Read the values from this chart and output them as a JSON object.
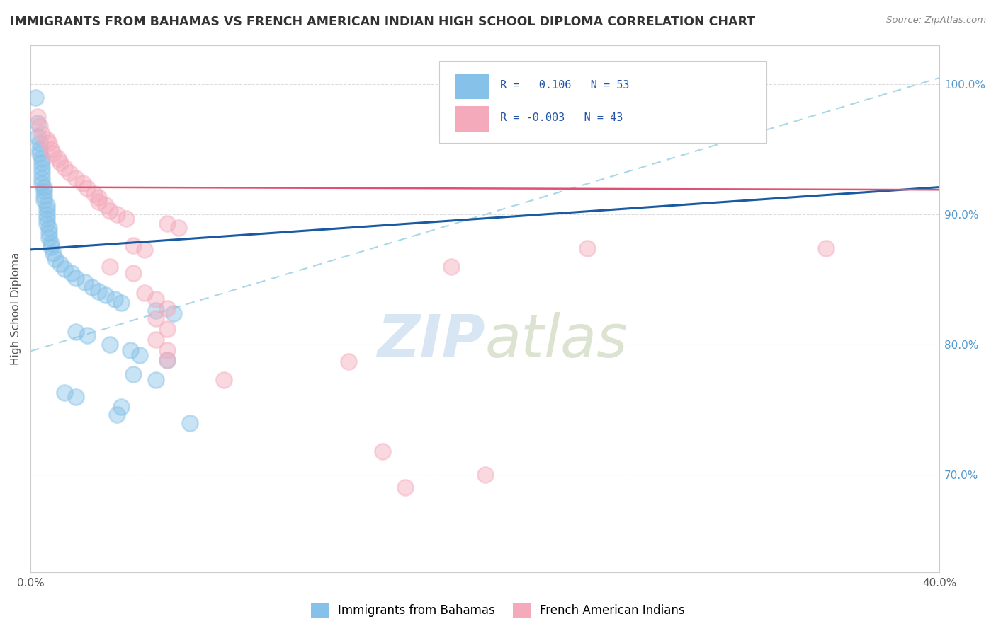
{
  "title": "IMMIGRANTS FROM BAHAMAS VS FRENCH AMERICAN INDIAN HIGH SCHOOL DIPLOMA CORRELATION CHART",
  "source": "Source: ZipAtlas.com",
  "ylabel": "High School Diploma",
  "xlim": [
    0.0,
    0.4
  ],
  "ylim": [
    0.625,
    1.03
  ],
  "yticks": [
    0.7,
    0.8,
    0.9,
    1.0
  ],
  "ytick_labels": [
    "70.0%",
    "80.0%",
    "90.0%",
    "100.0%"
  ],
  "blue_color": "#85C1E8",
  "pink_color": "#F4AABB",
  "title_color": "#333333",
  "blue_line_color": "#1A5AA0",
  "pink_line_color": "#E05070",
  "dashed_line_color": "#A8D8E8",
  "grid_color": "#DDDDDD",
  "watermark_color": "#C8DCF0",
  "blue_scatter": [
    [
      0.002,
      0.99
    ],
    [
      0.003,
      0.97
    ],
    [
      0.003,
      0.96
    ],
    [
      0.004,
      0.955
    ],
    [
      0.004,
      0.95
    ],
    [
      0.004,
      0.947
    ],
    [
      0.005,
      0.943
    ],
    [
      0.005,
      0.94
    ],
    [
      0.005,
      0.936
    ],
    [
      0.005,
      0.932
    ],
    [
      0.005,
      0.928
    ],
    [
      0.005,
      0.924
    ],
    [
      0.006,
      0.921
    ],
    [
      0.006,
      0.918
    ],
    [
      0.006,
      0.914
    ],
    [
      0.006,
      0.911
    ],
    [
      0.007,
      0.907
    ],
    [
      0.007,
      0.904
    ],
    [
      0.007,
      0.9
    ],
    [
      0.007,
      0.897
    ],
    [
      0.007,
      0.893
    ],
    [
      0.008,
      0.89
    ],
    [
      0.008,
      0.886
    ],
    [
      0.008,
      0.882
    ],
    [
      0.009,
      0.878
    ],
    [
      0.009,
      0.875
    ],
    [
      0.01,
      0.87
    ],
    [
      0.011,
      0.866
    ],
    [
      0.013,
      0.862
    ],
    [
      0.015,
      0.858
    ],
    [
      0.018,
      0.855
    ],
    [
      0.02,
      0.851
    ],
    [
      0.024,
      0.848
    ],
    [
      0.027,
      0.844
    ],
    [
      0.03,
      0.841
    ],
    [
      0.033,
      0.838
    ],
    [
      0.037,
      0.835
    ],
    [
      0.04,
      0.832
    ],
    [
      0.055,
      0.826
    ],
    [
      0.063,
      0.824
    ],
    [
      0.02,
      0.81
    ],
    [
      0.025,
      0.807
    ],
    [
      0.035,
      0.8
    ],
    [
      0.044,
      0.796
    ],
    [
      0.048,
      0.792
    ],
    [
      0.06,
      0.788
    ],
    [
      0.045,
      0.777
    ],
    [
      0.055,
      0.773
    ],
    [
      0.015,
      0.763
    ],
    [
      0.02,
      0.76
    ],
    [
      0.04,
      0.752
    ],
    [
      0.038,
      0.746
    ],
    [
      0.07,
      0.74
    ]
  ],
  "pink_scatter": [
    [
      0.003,
      0.975
    ],
    [
      0.004,
      0.968
    ],
    [
      0.005,
      0.962
    ],
    [
      0.007,
      0.958
    ],
    [
      0.008,
      0.955
    ],
    [
      0.009,
      0.95
    ],
    [
      0.01,
      0.947
    ],
    [
      0.012,
      0.943
    ],
    [
      0.013,
      0.94
    ],
    [
      0.015,
      0.936
    ],
    [
      0.017,
      0.932
    ],
    [
      0.02,
      0.928
    ],
    [
      0.023,
      0.924
    ],
    [
      0.025,
      0.92
    ],
    [
      0.028,
      0.916
    ],
    [
      0.03,
      0.913
    ],
    [
      0.03,
      0.91
    ],
    [
      0.033,
      0.907
    ],
    [
      0.035,
      0.903
    ],
    [
      0.038,
      0.9
    ],
    [
      0.042,
      0.897
    ],
    [
      0.06,
      0.893
    ],
    [
      0.065,
      0.89
    ],
    [
      0.045,
      0.876
    ],
    [
      0.05,
      0.873
    ],
    [
      0.035,
      0.86
    ],
    [
      0.045,
      0.855
    ],
    [
      0.05,
      0.84
    ],
    [
      0.055,
      0.835
    ],
    [
      0.06,
      0.828
    ],
    [
      0.055,
      0.82
    ],
    [
      0.06,
      0.812
    ],
    [
      0.055,
      0.804
    ],
    [
      0.06,
      0.796
    ],
    [
      0.06,
      0.788
    ],
    [
      0.245,
      0.874
    ],
    [
      0.35,
      0.874
    ],
    [
      0.185,
      0.86
    ],
    [
      0.14,
      0.787
    ],
    [
      0.085,
      0.773
    ],
    [
      0.155,
      0.718
    ],
    [
      0.2,
      0.7
    ],
    [
      0.165,
      0.69
    ]
  ],
  "blue_trendline": [
    [
      0.0,
      0.873
    ],
    [
      0.4,
      0.921
    ]
  ],
  "pink_trendline": [
    [
      0.0,
      0.921
    ],
    [
      0.4,
      0.919
    ]
  ],
  "dashed_line": [
    [
      0.0,
      0.795
    ],
    [
      0.4,
      1.005
    ]
  ]
}
